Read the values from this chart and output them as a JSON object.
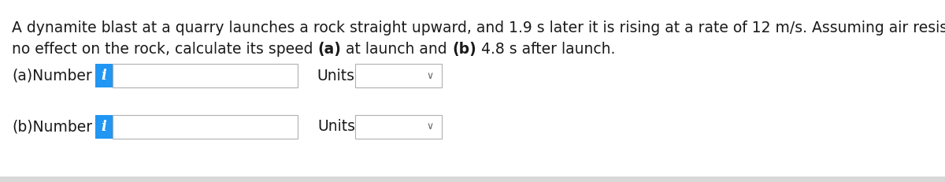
{
  "background_color": "#ffffff",
  "text_color": "#1a1a1a",
  "line1": "A dynamite blast at a quarry launches a rock straight upward, and 1.9 s later it is rising at a rate of 12 m/s. Assuming air resistance has",
  "line2_parts": [
    [
      "no effect on the rock, calculate its speed ",
      false
    ],
    [
      "(a)",
      true
    ],
    [
      " at launch and ",
      false
    ],
    [
      "(b)",
      true
    ],
    [
      " 4.8 s after launch.",
      false
    ]
  ],
  "row_a_label": "(a)Number",
  "row_b_label": "(b)Number",
  "units_label": "Units",
  "info_text": "i",
  "info_bg": "#2196f3",
  "info_text_color": "#ffffff",
  "input_bg": "#ffffff",
  "input_border": "#b0b0b0",
  "dropdown_bg": "#ffffff",
  "dropdown_border": "#b0b0b0",
  "chevron": "∨",
  "bottom_bar_color": "#d8d8d8",
  "font_size_para": 13.5,
  "font_size_ui": 13.5
}
